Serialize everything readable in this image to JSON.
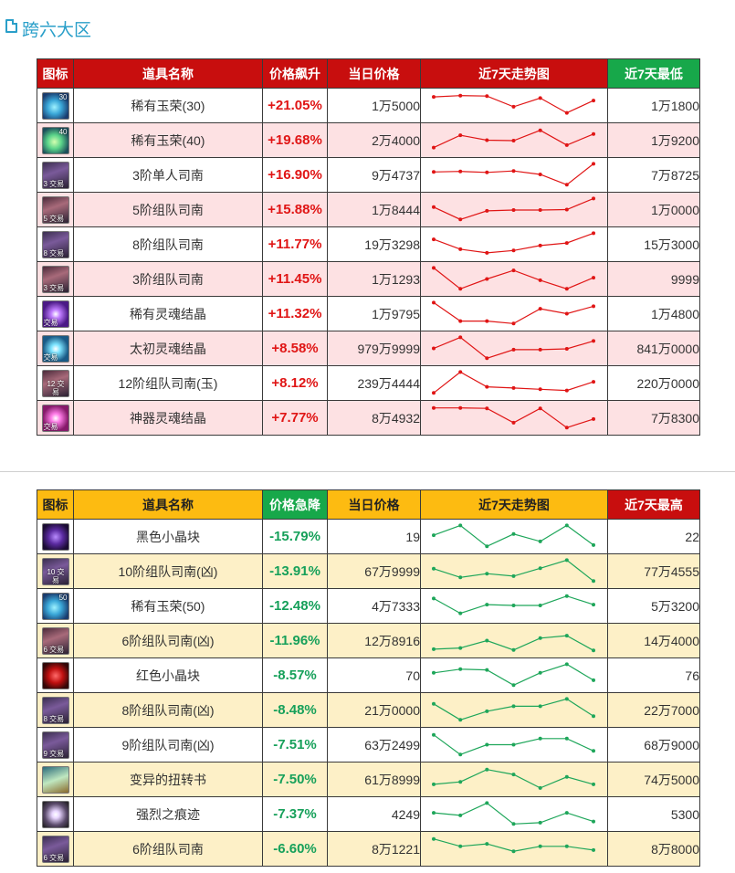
{
  "page_title": "跨六大区",
  "up_table": {
    "headers": {
      "icon": "图标",
      "name": "道具名称",
      "change": "价格飙升",
      "price": "当日价格",
      "trend": "近7天走势图",
      "extreme": "近7天最低"
    },
    "line_color": "#e01515",
    "rows": [
      {
        "icon": "jade",
        "icon_style": "ico-jade",
        "icon_num": "30",
        "icon_tag": "",
        "name": "稀有玉荣(30)",
        "change": "+21.05%",
        "price": "1万5000",
        "extreme": "1万1800",
        "trend": [
          0.85,
          0.9,
          0.88,
          0.45,
          0.8,
          0.2,
          0.7
        ]
      },
      {
        "icon": "jade-green",
        "icon_style": "ico-jade-green",
        "icon_num": "40",
        "icon_tag": "",
        "name": "稀有玉荣(40)",
        "change": "+19.68%",
        "price": "2万4000",
        "extreme": "1万9200",
        "trend": [
          0.2,
          0.7,
          0.5,
          0.48,
          0.9,
          0.3,
          0.75
        ]
      },
      {
        "icon": "ship",
        "icon_style": "ico-ship",
        "icon_num": "",
        "icon_tag": "3 交易",
        "name": "3阶单人司南",
        "change": "+16.90%",
        "price": "9万4737",
        "extreme": "7万8725",
        "trend": [
          0.62,
          0.64,
          0.6,
          0.66,
          0.52,
          0.1,
          0.95
        ]
      },
      {
        "icon": "ship-red",
        "icon_style": "ico-ship-red",
        "icon_num": "",
        "icon_tag": "5 交易",
        "name": "5阶组队司南",
        "change": "+15.88%",
        "price": "1万8444",
        "extreme": "1万0000",
        "trend": [
          0.6,
          0.1,
          0.45,
          0.48,
          0.48,
          0.5,
          0.95
        ]
      },
      {
        "icon": "ship",
        "icon_style": "ico-ship",
        "icon_num": "",
        "icon_tag": "8 交易",
        "name": "8阶组队司南",
        "change": "+11.77%",
        "price": "19万3298",
        "extreme": "15万3000",
        "trend": [
          0.7,
          0.3,
          0.15,
          0.25,
          0.45,
          0.55,
          0.95
        ]
      },
      {
        "icon": "ship-red",
        "icon_style": "ico-ship-red",
        "icon_num": "",
        "icon_tag": "3 交易",
        "name": "3阶组队司南",
        "change": "+11.45%",
        "price": "1万1293",
        "extreme": "9999",
        "trend": [
          0.95,
          0.1,
          0.5,
          0.85,
          0.45,
          0.1,
          0.55
        ]
      },
      {
        "icon": "soul",
        "icon_style": "ico-soul",
        "icon_num": "",
        "icon_tag": "交易",
        "name": "稀有灵魂结晶",
        "change": "+11.32%",
        "price": "1万9795",
        "extreme": "1万4800",
        "trend": [
          0.95,
          0.2,
          0.2,
          0.1,
          0.7,
          0.5,
          0.8
        ]
      },
      {
        "icon": "soul-blue",
        "icon_style": "ico-soul-blue",
        "icon_num": "",
        "icon_tag": "交易",
        "name": "太初灵魂结晶",
        "change": "+8.58%",
        "price": "979万9999",
        "extreme": "841万0000",
        "trend": [
          0.5,
          0.95,
          0.1,
          0.45,
          0.45,
          0.48,
          0.8
        ]
      },
      {
        "icon": "ship-red",
        "icon_style": "ico-ship-red",
        "icon_num": "",
        "icon_tag": "12 交易",
        "name": "12阶组队司南(玉)",
        "change": "+8.12%",
        "price": "239万4444",
        "extreme": "220万0000",
        "trend": [
          0.1,
          0.95,
          0.35,
          0.3,
          0.25,
          0.2,
          0.55
        ]
      },
      {
        "icon": "soul-pink",
        "icon_style": "ico-soul-pink",
        "icon_num": "",
        "icon_tag": "交易",
        "name": "神器灵魂结晶",
        "change": "+7.77%",
        "price": "8万4932",
        "extreme": "7万8300",
        "trend": [
          0.9,
          0.9,
          0.88,
          0.3,
          0.88,
          0.1,
          0.45
        ]
      }
    ]
  },
  "down_table": {
    "headers": {
      "icon": "图标",
      "name": "道具名称",
      "change": "价格急降",
      "price": "当日价格",
      "trend": "近7天走势图",
      "extreme": "近7天最高"
    },
    "line_color": "#1ea65a",
    "rows": [
      {
        "icon": "cube-purple",
        "icon_style": "ico-cube-purple",
        "icon_num": "",
        "icon_tag": "",
        "name": "黑色小晶块",
        "change": "-15.79%",
        "price": "19",
        "extreme": "22",
        "trend": [
          0.55,
          0.95,
          0.1,
          0.6,
          0.3,
          0.95,
          0.15
        ]
      },
      {
        "icon": "ship",
        "icon_style": "ico-ship",
        "icon_num": "",
        "icon_tag": "10 交易",
        "name": "10阶组队司南(凶)",
        "change": "-13.91%",
        "price": "67万9999",
        "extreme": "77万4555",
        "trend": [
          0.6,
          0.25,
          0.4,
          0.3,
          0.62,
          0.95,
          0.1
        ]
      },
      {
        "icon": "jade",
        "icon_style": "ico-jade",
        "icon_num": "50",
        "icon_tag": "",
        "name": "稀有玉荣(50)",
        "change": "-12.48%",
        "price": "4万7333",
        "extreme": "5万3200",
        "trend": [
          0.8,
          0.2,
          0.55,
          0.52,
          0.52,
          0.9,
          0.55
        ]
      },
      {
        "icon": "ship-red",
        "icon_style": "ico-ship-red",
        "icon_num": "",
        "icon_tag": "6 交易",
        "name": "6阶组队司南(凶)",
        "change": "-11.96%",
        "price": "12万8916",
        "extreme": "14万4000",
        "trend": [
          0.15,
          0.2,
          0.5,
          0.12,
          0.6,
          0.7,
          0.1
        ]
      },
      {
        "icon": "cube-red",
        "icon_style": "ico-cube-red",
        "icon_num": "",
        "icon_tag": "",
        "name": "红色小晶块",
        "change": "-8.57%",
        "price": "70",
        "extreme": "76",
        "trend": [
          0.6,
          0.75,
          0.72,
          0.1,
          0.6,
          0.95,
          0.3
        ]
      },
      {
        "icon": "ship",
        "icon_style": "ico-ship",
        "icon_num": "",
        "icon_tag": "8 交易",
        "name": "8阶组队司南(凶)",
        "change": "-8.48%",
        "price": "21万0000",
        "extreme": "22万7000",
        "trend": [
          0.75,
          0.1,
          0.45,
          0.65,
          0.65,
          0.95,
          0.25
        ]
      },
      {
        "icon": "ship",
        "icon_style": "ico-ship",
        "icon_num": "",
        "icon_tag": "9 交易",
        "name": "9阶组队司南(凶)",
        "change": "-7.51%",
        "price": "63万2499",
        "extreme": "68万9000",
        "trend": [
          0.9,
          0.1,
          0.5,
          0.5,
          0.75,
          0.75,
          0.25
        ]
      },
      {
        "icon": "scroll",
        "icon_style": "ico-scroll",
        "icon_num": "",
        "icon_tag": "",
        "name": "变异的扭转书",
        "change": "-7.50%",
        "price": "61万8999",
        "extreme": "74万5000",
        "trend": [
          0.3,
          0.4,
          0.9,
          0.7,
          0.15,
          0.6,
          0.3
        ]
      },
      {
        "icon": "burst",
        "icon_style": "ico-burst",
        "icon_num": "",
        "icon_tag": "",
        "name": "强烈之痕迹",
        "change": "-7.37%",
        "price": "4249",
        "extreme": "5300",
        "trend": [
          0.55,
          0.45,
          0.95,
          0.1,
          0.15,
          0.55,
          0.2
        ]
      },
      {
        "icon": "ship",
        "icon_style": "ico-ship",
        "icon_num": "",
        "icon_tag": "6 交易",
        "name": "6阶组队司南",
        "change": "-6.60%",
        "price": "8万1221",
        "extreme": "8万8000",
        "trend": [
          0.9,
          0.6,
          0.7,
          0.4,
          0.6,
          0.6,
          0.45
        ]
      }
    ]
  }
}
